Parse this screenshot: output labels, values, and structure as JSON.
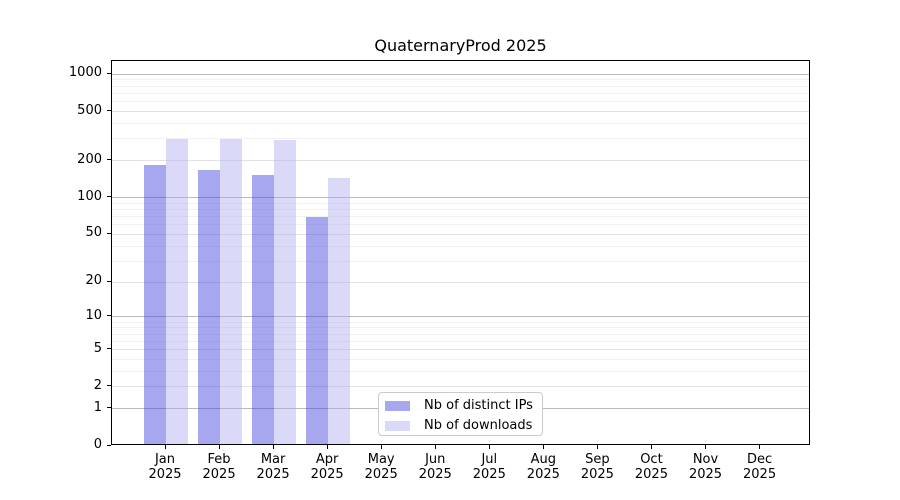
{
  "chart_data": {
    "type": "bar",
    "title": "QuaternaryProd 2025",
    "categories": [
      "Jan",
      "Feb",
      "Mar",
      "Apr",
      "May",
      "Jun",
      "Jul",
      "Aug",
      "Sep",
      "Oct",
      "Nov",
      "Dec"
    ],
    "year_label": "2025",
    "series": [
      {
        "name": "Nb of distinct IPs",
        "legend_fill": "#a7a7ef",
        "fill": "rgba(68,68,221,0.47)",
        "values": [
          183,
          168,
          152,
          70,
          null,
          null,
          null,
          null,
          null,
          null,
          null,
          null
        ]
      },
      {
        "name": "Nb of downloads",
        "legend_fill": "#dadaf8",
        "fill": "rgba(174,174,240,0.45)",
        "values": [
          302,
          298,
          295,
          145,
          null,
          null,
          null,
          null,
          null,
          null,
          null,
          null
        ]
      }
    ],
    "y_ticks": [
      0,
      1,
      2,
      5,
      10,
      20,
      50,
      100,
      200,
      500,
      1000
    ],
    "y_scale": "log1p",
    "ylim": [
      0,
      1000
    ],
    "grid": "horizontal major and minor gridlines",
    "grid_colors": {
      "major": "#b9b9b9",
      "labeled": "#e2e2e2",
      "minor": "#f1f1f1"
    },
    "legend_position": "inside axes, bottom center-left",
    "axis_color": "#000000"
  }
}
